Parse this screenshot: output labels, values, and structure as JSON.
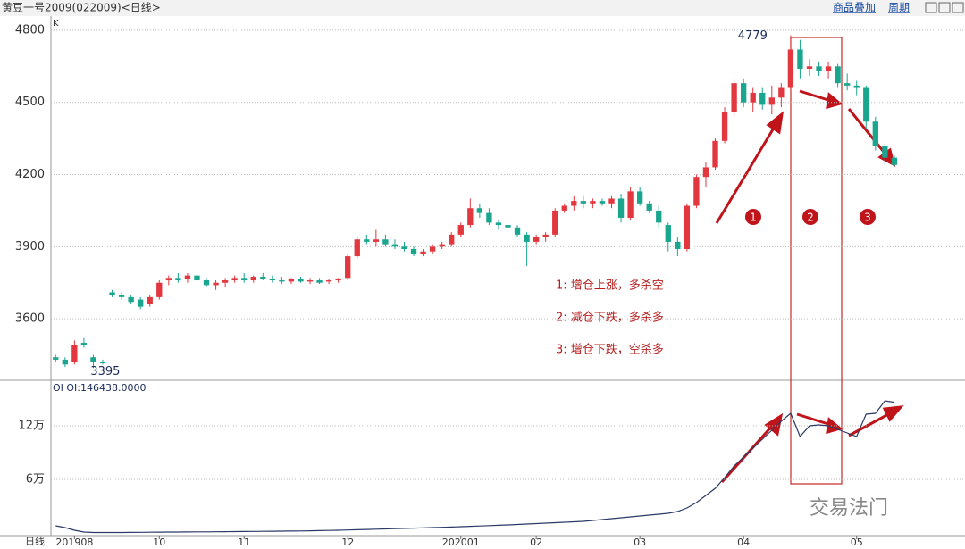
{
  "header": {
    "title": "黄豆一号2009(022009)<日线>",
    "overlay": "商品叠加",
    "period": "周期"
  },
  "watermark": "交易法门",
  "chart_data": [
    {
      "type": "candlestick",
      "pane_label": "K",
      "ylim": [
        3348,
        4859
      ],
      "yticks": [
        3600,
        3900,
        4200,
        4500,
        4800
      ],
      "xlim": [
        -0.5,
        96.5
      ],
      "grid": true,
      "up_color": "#e2373f",
      "down_color": "#1aa58e",
      "ohlc": [
        [
          3440,
          3450,
          3420,
          3430
        ],
        [
          3430,
          3440,
          3400,
          3410
        ],
        [
          3420,
          3510,
          3410,
          3490
        ],
        [
          3500,
          3520,
          3480,
          3490
        ],
        [
          3440,
          3450,
          3395,
          3420
        ],
        [
          3420,
          3430,
          3410,
          3415
        ],
        [
          3710,
          3720,
          3690,
          3700
        ],
        [
          3700,
          3710,
          3680,
          3690
        ],
        [
          3690,
          3700,
          3660,
          3670
        ],
        [
          3680,
          3690,
          3640,
          3650
        ],
        [
          3660,
          3700,
          3650,
          3690
        ],
        [
          3690,
          3760,
          3680,
          3750
        ],
        [
          3760,
          3780,
          3740,
          3770
        ],
        [
          3770,
          3790,
          3750,
          3760
        ],
        [
          3765,
          3790,
          3750,
          3780
        ],
        [
          3780,
          3790,
          3750,
          3760
        ],
        [
          3760,
          3770,
          3730,
          3740
        ],
        [
          3740,
          3760,
          3720,
          3750
        ],
        [
          3750,
          3770,
          3730,
          3760
        ],
        [
          3760,
          3780,
          3750,
          3770
        ],
        [
          3770,
          3790,
          3750,
          3760
        ],
        [
          3760,
          3780,
          3750,
          3775
        ],
        [
          3775,
          3790,
          3760,
          3765
        ],
        [
          3765,
          3780,
          3750,
          3760
        ],
        [
          3760,
          3775,
          3745,
          3755
        ],
        [
          3755,
          3770,
          3745,
          3765
        ],
        [
          3765,
          3775,
          3750,
          3755
        ],
        [
          3755,
          3770,
          3745,
          3760
        ],
        [
          3760,
          3770,
          3745,
          3750
        ],
        [
          3755,
          3765,
          3745,
          3760
        ],
        [
          3760,
          3770,
          3750,
          3765
        ],
        [
          3770,
          3870,
          3760,
          3860
        ],
        [
          3860,
          3940,
          3850,
          3930
        ],
        [
          3930,
          3950,
          3910,
          3920
        ],
        [
          3920,
          3970,
          3900,
          3930
        ],
        [
          3930,
          3950,
          3900,
          3910
        ],
        [
          3910,
          3930,
          3890,
          3900
        ],
        [
          3900,
          3920,
          3880,
          3890
        ],
        [
          3890,
          3900,
          3860,
          3870
        ],
        [
          3870,
          3890,
          3860,
          3880
        ],
        [
          3880,
          3910,
          3870,
          3900
        ],
        [
          3900,
          3920,
          3890,
          3910
        ],
        [
          3910,
          3960,
          3900,
          3950
        ],
        [
          3950,
          4000,
          3940,
          3990
        ],
        [
          3990,
          4100,
          3980,
          4060
        ],
        [
          4060,
          4080,
          4020,
          4040
        ],
        [
          4040,
          4060,
          3990,
          4000
        ],
        [
          4000,
          4010,
          3970,
          3990
        ],
        [
          3990,
          4000,
          3970,
          3980
        ],
        [
          3980,
          3990,
          3940,
          3950
        ],
        [
          3950,
          3960,
          3820,
          3920
        ],
        [
          3920,
          3950,
          3910,
          3940
        ],
        [
          3940,
          3960,
          3920,
          3950
        ],
        [
          3950,
          4060,
          3940,
          4050
        ],
        [
          4050,
          4080,
          4040,
          4070
        ],
        [
          4070,
          4110,
          4050,
          4090
        ],
        [
          4090,
          4110,
          4060,
          4080
        ],
        [
          4080,
          4100,
          4060,
          4090
        ],
        [
          4090,
          4100,
          4070,
          4080
        ],
        [
          4080,
          4110,
          4060,
          4100
        ],
        [
          4100,
          4120,
          4000,
          4020
        ],
        [
          4020,
          4150,
          4010,
          4130
        ],
        [
          4130,
          4150,
          4070,
          4080
        ],
        [
          4080,
          4090,
          4040,
          4050
        ],
        [
          4050,
          4070,
          3980,
          4000
        ],
        [
          3990,
          4000,
          3880,
          3920
        ],
        [
          3920,
          3940,
          3860,
          3890
        ],
        [
          3890,
          4080,
          3880,
          4070
        ],
        [
          4070,
          4200,
          4060,
          4190
        ],
        [
          4190,
          4250,
          4150,
          4230
        ],
        [
          4230,
          4350,
          4220,
          4340
        ],
        [
          4340,
          4480,
          4330,
          4460
        ],
        [
          4460,
          4600,
          4440,
          4580
        ],
        [
          4580,
          4600,
          4480,
          4500
        ],
        [
          4500,
          4560,
          4460,
          4540
        ],
        [
          4540,
          4560,
          4470,
          4490
        ],
        [
          4490,
          4570,
          4450,
          4520
        ],
        [
          4520,
          4580,
          4480,
          4560
        ],
        [
          4560,
          4779,
          4550,
          4720
        ],
        [
          4720,
          4760,
          4600,
          4640
        ],
        [
          4640,
          4680,
          4610,
          4650
        ],
        [
          4650,
          4670,
          4610,
          4630
        ],
        [
          4630,
          4670,
          4600,
          4650
        ],
        [
          4650,
          4660,
          4560,
          4580
        ],
        [
          4580,
          4620,
          4550,
          4570
        ],
        [
          4570,
          4590,
          4530,
          4560
        ],
        [
          4560,
          4570,
          4390,
          4420
        ],
        [
          4420,
          4440,
          4300,
          4320
        ],
        [
          4320,
          4330,
          4240,
          4270
        ],
        [
          4270,
          4280,
          4230,
          4240
        ]
      ],
      "annotations": [
        "4779",
        "3395"
      ],
      "notes": [
        "1: 增仓上涨，多杀空",
        "2: 减仓下跌，多杀多",
        "3: 增仓下跌，空杀多"
      ],
      "phase_labels": [
        "1",
        "2",
        "3"
      ]
    },
    {
      "type": "line",
      "pane_label": "OI OI:146438.0000",
      "color": "#2b3a67",
      "ylim": [
        -1000,
        170000
      ],
      "xlim": [
        -0.5,
        96.5
      ],
      "yticks": [
        {
          "value": 60000,
          "label": "6万"
        },
        {
          "value": 120000,
          "label": "12万"
        }
      ],
      "x_axis_label": "日线",
      "xticks": [
        {
          "value": 2,
          "label": "201908"
        },
        {
          "value": 11,
          "label": "10"
        },
        {
          "value": 20,
          "label": "11"
        },
        {
          "value": 31,
          "label": "12"
        },
        {
          "value": 43,
          "label": "202001"
        },
        {
          "value": 51,
          "label": "02"
        },
        {
          "value": 62,
          "label": "03"
        },
        {
          "value": 73,
          "label": "04"
        },
        {
          "value": 85,
          "label": "05"
        }
      ],
      "values": [
        8000,
        6000,
        3000,
        1000,
        500,
        500,
        500,
        500,
        600,
        700,
        800,
        900,
        1000,
        1000,
        1100,
        1200,
        1200,
        1300,
        1400,
        1500,
        1600,
        1700,
        1800,
        1900,
        2000,
        2100,
        2200,
        2400,
        2600,
        2800,
        3000,
        3300,
        3600,
        3900,
        4200,
        4500,
        4800,
        5100,
        5400,
        5700,
        6000,
        6300,
        6600,
        7000,
        7400,
        7800,
        8200,
        8600,
        9000,
        9500,
        10000,
        10500,
        11000,
        11500,
        12000,
        12500,
        13000,
        14000,
        15000,
        16000,
        17000,
        18000,
        19000,
        20000,
        21000,
        22000,
        24000,
        28000,
        34000,
        42000,
        50000,
        62000,
        75000,
        85000,
        95000,
        105000,
        115000,
        125000,
        134000,
        108000,
        120000,
        121000,
        120000,
        116000,
        112000,
        108000,
        133000,
        134000,
        148000,
        146438
      ]
    }
  ]
}
